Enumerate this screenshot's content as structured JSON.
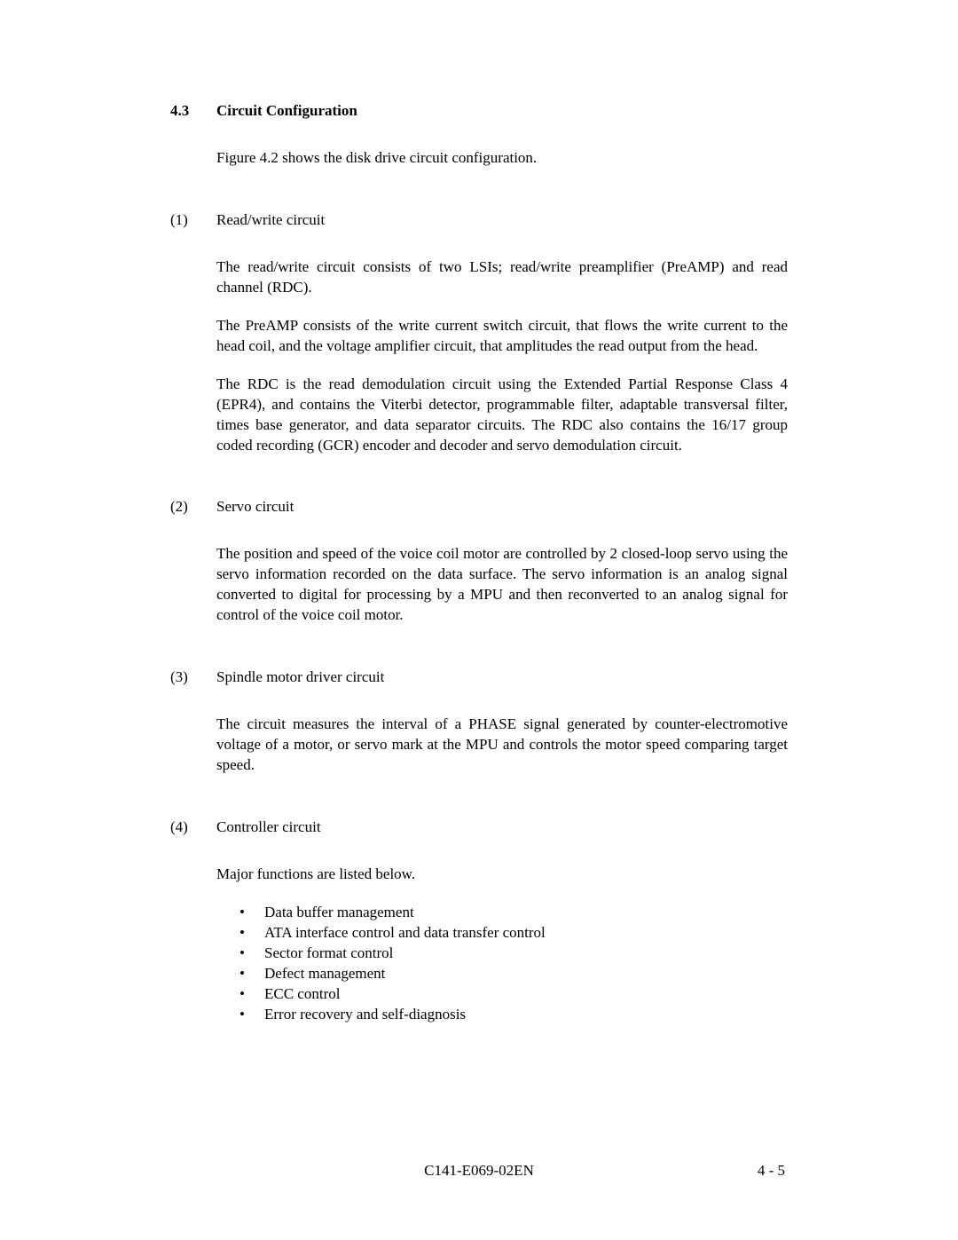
{
  "section": {
    "num": "4.3",
    "title": "Circuit Configuration",
    "intro": "Figure 4.2 shows the disk drive circuit configuration."
  },
  "subsections": [
    {
      "num": "(1)",
      "title": "Read/write circuit",
      "paras": [
        "The read/write circuit consists of two LSIs; read/write preamplifier (PreAMP) and read channel (RDC).",
        "The PreAMP consists of the write current switch circuit, that  flows the write current to the head coil, and the voltage amplifier circuit, that amplitudes the read output from the head.",
        "The RDC is the read demodulation circuit using the Extended Partial Response Class 4 (EPR4), and contains the Viterbi detector, programmable filter, adaptable transversal filter, times base generator, and data separator circuits.  The RDC also contains the 16/17 group coded recording (GCR) encoder and decoder and servo demodulation circuit."
      ]
    },
    {
      "num": "(2)",
      "title": "Servo circuit",
      "paras": [
        "The position and speed of the voice coil motor are controlled by 2 closed-loop servo using the servo information recorded on the data surface.  The servo information is an analog signal converted to digital for processing by a MPU and then reconverted to an analog signal for control of the voice coil motor."
      ]
    },
    {
      "num": "(3)",
      "title": "Spindle motor driver circuit",
      "paras": [
        "The circuit measures the interval of a PHASE signal generated by counter-electromotive voltage of a motor, or servo mark at the MPU and controls the motor speed comparing target speed."
      ]
    },
    {
      "num": "(4)",
      "title": "Controller circuit",
      "paras": [
        "Major functions are listed below."
      ],
      "bullets": [
        "Data buffer management",
        "ATA interface control and data transfer control",
        "Sector format control",
        "Defect management",
        "ECC control",
        "Error recovery and self-diagnosis"
      ]
    }
  ],
  "footer": {
    "center": "C141-E069-02EN",
    "right": "4 - 5"
  }
}
